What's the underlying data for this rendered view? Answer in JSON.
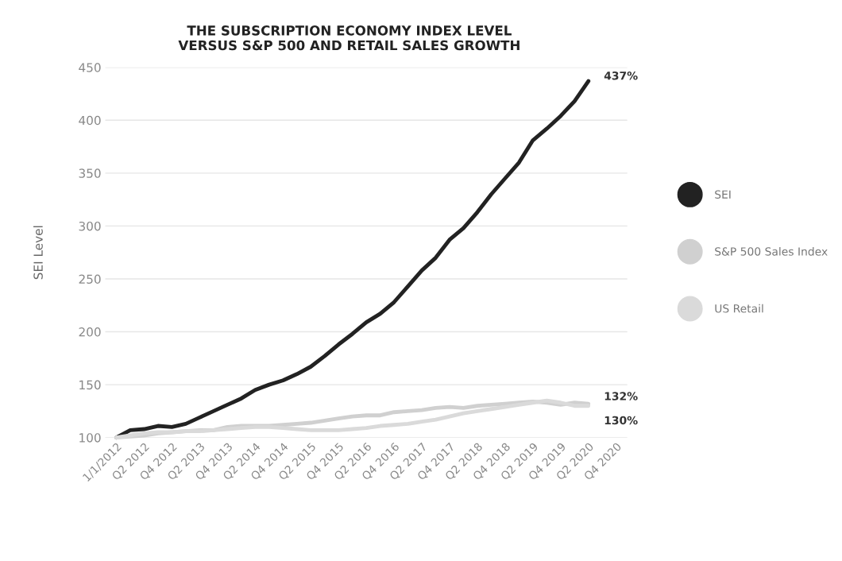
{
  "chart_data": {
    "type": "line",
    "title": "THE SUBSCRIPTION ECONOMY INDEX LEVEL\nVERSUS S&P 500 AND RETAIL SALES GROWTH",
    "ylabel": "SEI Level",
    "categories": [
      "1/1/2012",
      null,
      "Q2 2012",
      null,
      "Q4 2012",
      null,
      "Q2 2013",
      null,
      "Q4 2013",
      null,
      "Q2 2014",
      null,
      "Q4 2014",
      null,
      "Q2 2015",
      null,
      "Q4 2015",
      null,
      "Q2 2016",
      null,
      "Q4 2016",
      null,
      "Q2 2017",
      null,
      "Q4 2017",
      null,
      "Q2 2018",
      null,
      "Q4 2018",
      null,
      "Q2 2019",
      null,
      "Q4 2019",
      null,
      "Q2 2020",
      null,
      "Q4 2020"
    ],
    "series": [
      {
        "name": "SEI",
        "color": "#222222",
        "values": [
          100,
          107,
          108,
          111,
          110,
          113,
          119,
          125,
          131,
          137,
          145,
          150,
          154,
          160,
          167,
          177,
          188,
          198,
          209,
          217,
          228,
          243,
          258,
          270,
          287,
          298,
          313,
          330,
          345,
          360,
          381,
          392,
          404,
          418,
          437,
          null,
          null
        ]
      },
      {
        "name": "S&P 500 Sales Index",
        "color": "#d0d0d0",
        "values": [
          100,
          101,
          102,
          104,
          105,
          106,
          107,
          107,
          110,
          111,
          111,
          111,
          112,
          113,
          114,
          116,
          118,
          120,
          121,
          121,
          124,
          125,
          126,
          128,
          129,
          128,
          130,
          131,
          132,
          133,
          134,
          133,
          131,
          133,
          132,
          null,
          null
        ]
      },
      {
        "name": "US Retail",
        "color": "#dadada",
        "values": [
          100,
          102,
          104,
          105,
          105,
          106,
          106,
          107,
          108,
          109,
          110,
          110,
          109,
          108,
          107,
          107,
          107,
          108,
          109,
          111,
          112,
          113,
          115,
          117,
          120,
          123,
          125,
          127,
          129,
          131,
          133,
          135,
          133,
          130,
          130,
          null,
          null
        ]
      }
    ],
    "ylim": [
      100,
      450
    ],
    "yticks": [
      100,
      150,
      200,
      250,
      300,
      350,
      400,
      450
    ],
    "grid": "y",
    "legend": "right",
    "marker": "none",
    "line_style": "solid",
    "annotations": [
      {
        "text": "437%",
        "x": "Q2 2020",
        "y": 437
      },
      {
        "text": "132%",
        "x": "Q2 2020",
        "y": 132
      },
      {
        "text": "130%",
        "x": "Q2 2020",
        "y": 130
      }
    ]
  }
}
